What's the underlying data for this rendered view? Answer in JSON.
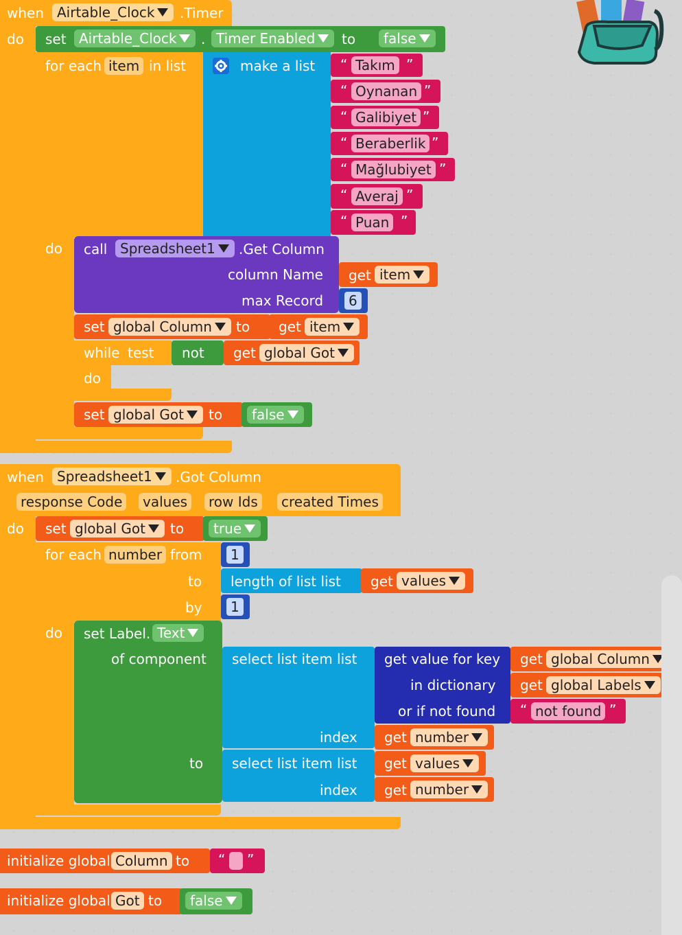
{
  "timer_event": {
    "when": "when",
    "component": "Airtable_Clock",
    "event": ".Timer",
    "do": "do",
    "set_kw": "set",
    "set_component": "Airtable_Clock",
    "dot": ".",
    "set_property": "Timer Enabled",
    "to": "to",
    "set_value": "false",
    "foreach_kw": "for each",
    "foreach_var": "item",
    "in_list": "in list",
    "make_list": "make a list",
    "list_items": [
      "Takım",
      "Oynanan",
      "Galibiyet",
      "Beraberlik",
      "Mağlubiyet",
      "Averaj",
      "Puan"
    ],
    "loop_do": "do",
    "call_kw": "call",
    "call_component": "Spreadsheet1",
    "call_method": ".Get Column",
    "column_name_label": "column Name",
    "get_kw": "get",
    "get_item": "item",
    "max_record_label": "max Record",
    "max_record_value": "6",
    "set_global_column": "global Column",
    "while_kw": "while",
    "test_kw": "test",
    "not_kw": "not",
    "get_global_got": "global Got",
    "while_do": "do",
    "set_global_got": "global Got",
    "false_value": "false"
  },
  "gotcolumn_event": {
    "when": "when",
    "component": "Spreadsheet1",
    "event": ".Got Column",
    "params": [
      "response Code",
      "values",
      "row Ids",
      "created Times"
    ],
    "do": "do",
    "set_kw": "set",
    "set_var": "global Got",
    "to": "to",
    "true_value": "true",
    "foreach_kw": "for each",
    "foreach_var": "number",
    "from_kw": "from",
    "from_value": "1",
    "to_kw": "to",
    "length_of_list": "length of list  list",
    "get_kw": "get",
    "get_values": "values",
    "by_kw": "by",
    "by_value": "1",
    "loop_do": "do",
    "set_label": "set Label.",
    "label_prop": "Text",
    "of_component": "of component",
    "select_list_item": "select list item  list",
    "get_value_for_key": "get value for key",
    "get_global_column": "global Column",
    "in_dictionary": "in dictionary",
    "get_global_labels": "global Labels",
    "or_if_not_found": "or if not found",
    "not_found_text": "not found",
    "index_kw": "index",
    "get_number": "number",
    "to_label": "to",
    "select_list_item2": "select list item  list",
    "get_values2": "values",
    "index_kw2": "index",
    "get_number2": "number"
  },
  "init_column": {
    "label": "initialize global",
    "name": "Column",
    "to": "to"
  },
  "init_got": {
    "label": "initialize global",
    "name": "Got",
    "to": "to",
    "value": "false"
  },
  "quotes": {
    "open": "“",
    "close": "”"
  },
  "icons": {
    "mutator": "gear-icon",
    "backpack": "backpack-icon"
  },
  "colors": {
    "event": "#ffab19",
    "procedure_var": "#ff661a",
    "logic": "#3d9a3d",
    "list": "#0ea2dc",
    "dictionary": "#242cb0",
    "text": "#d6145a",
    "component": "#6b39c0",
    "math": "#2450b8"
  }
}
